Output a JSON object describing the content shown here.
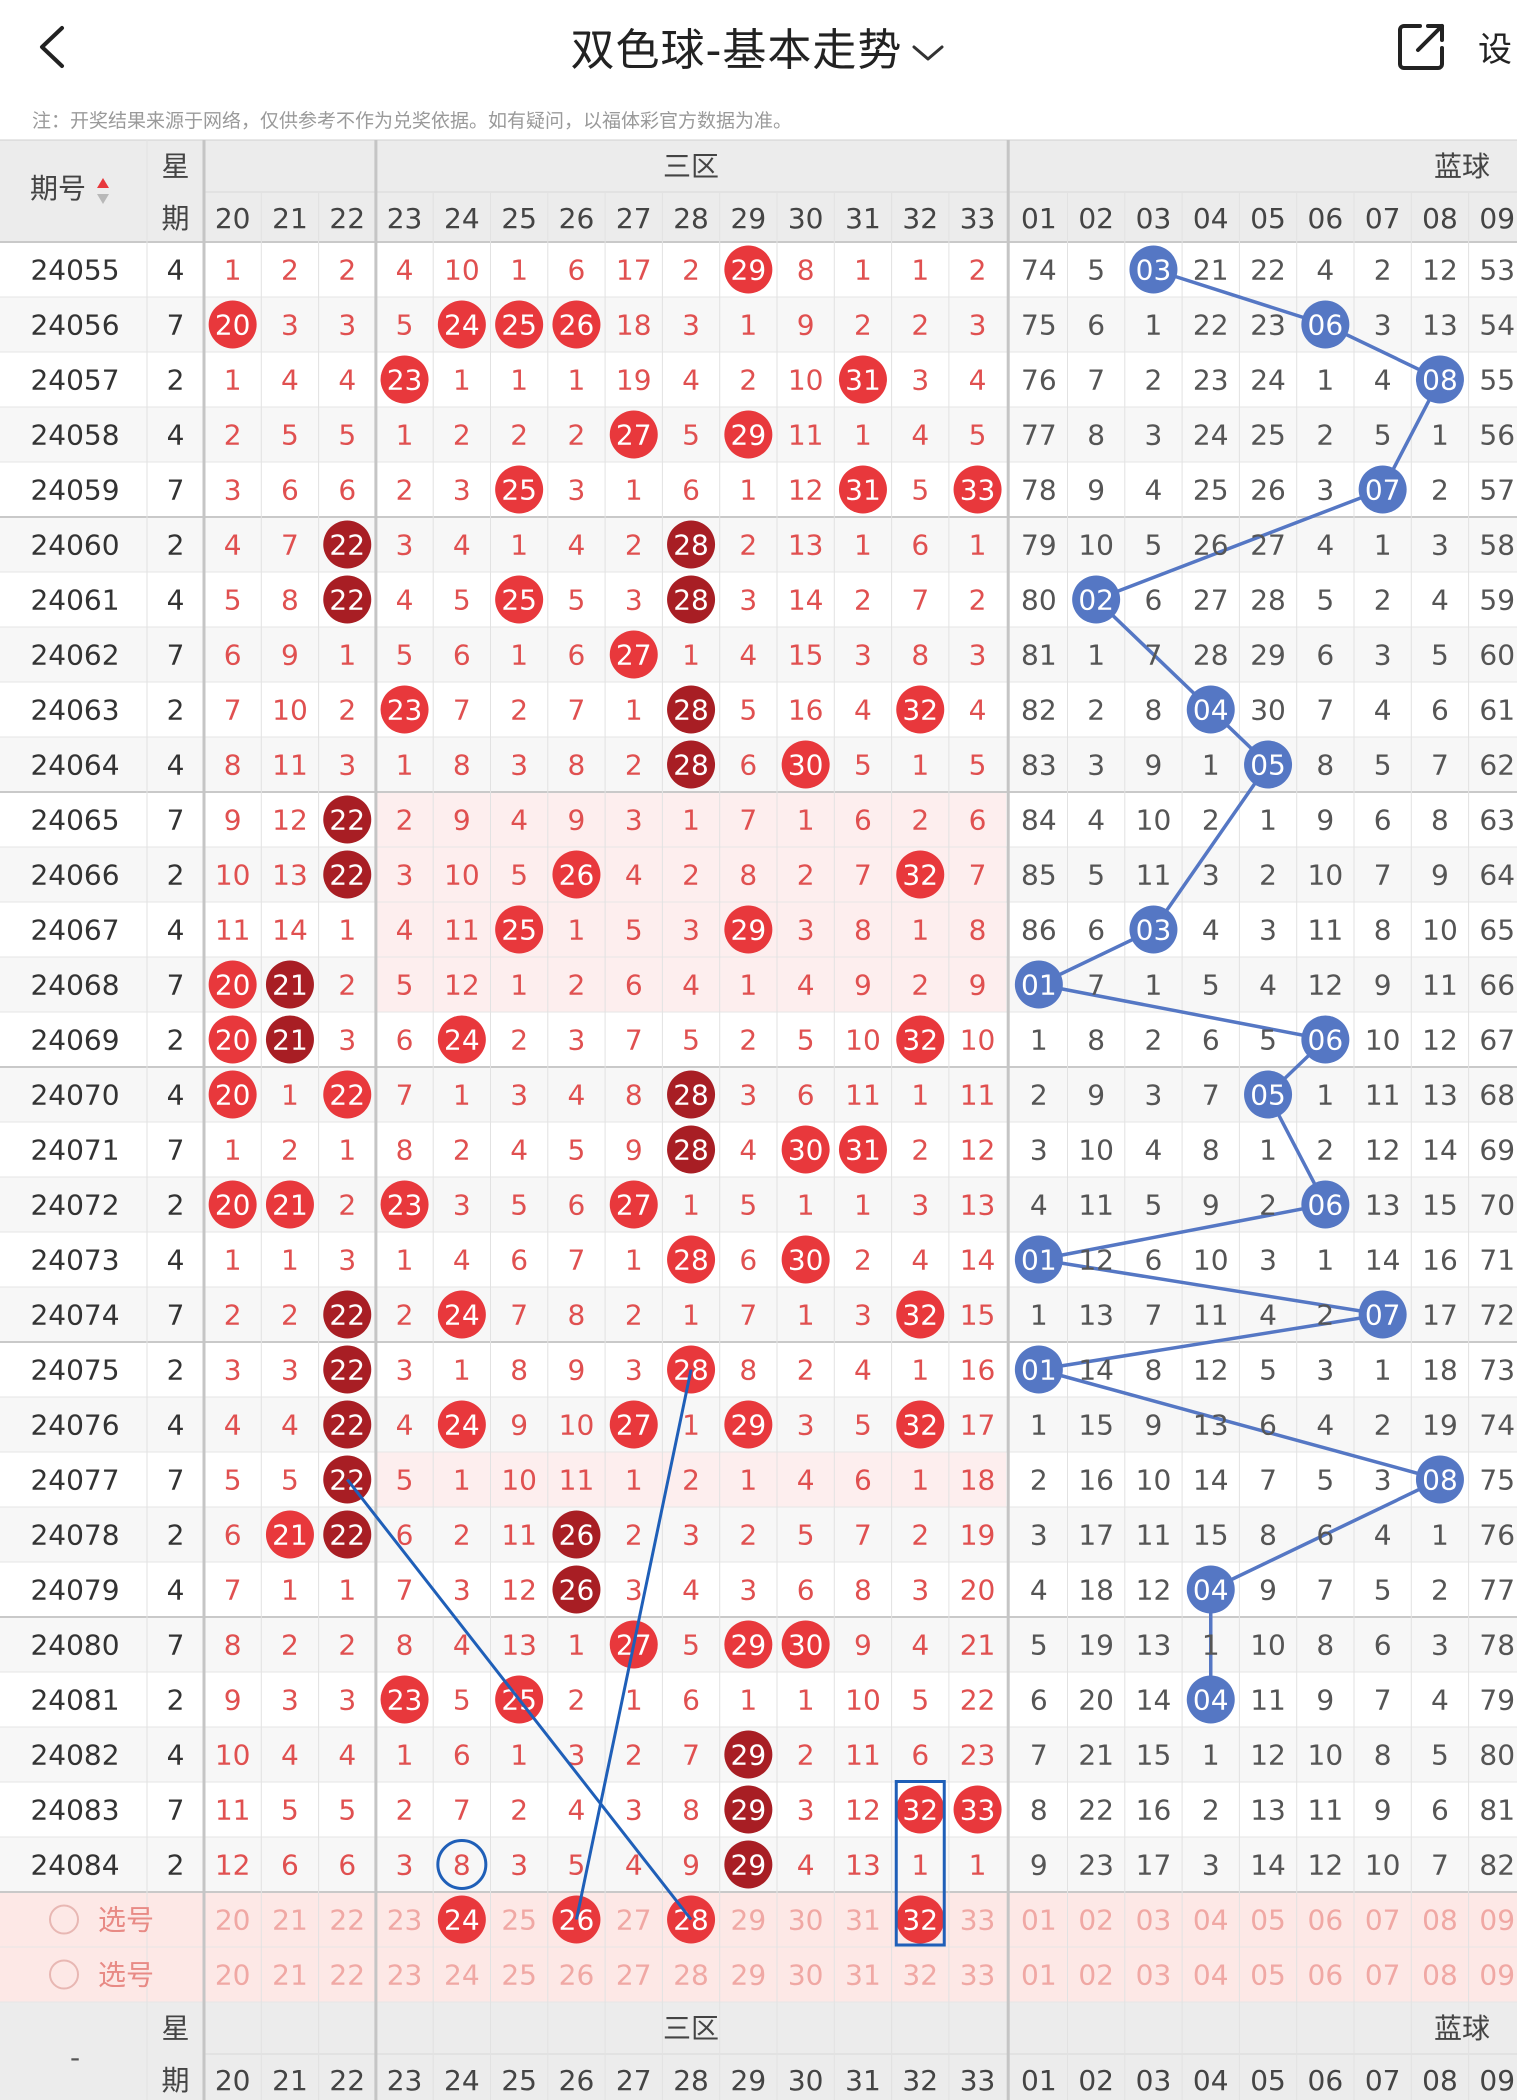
{
  "header": {
    "title": "双色球-基本走势",
    "settings_label": "设"
  },
  "note": "注：开奖结果来源于网络，仅供参考不作为兑奖依据。如有疑问，以福体彩官方数据为准。",
  "table": {
    "issue_header": "期号",
    "week_header": [
      "星",
      "期"
    ],
    "zone3_label": "三区",
    "blue_label": "蓝球",
    "red_cols": [
      "20",
      "21",
      "22",
      "23",
      "24",
      "25",
      "26",
      "27",
      "28",
      "29",
      "30",
      "31",
      "32",
      "33"
    ],
    "blue_cols": [
      "01",
      "02",
      "03",
      "04",
      "05",
      "06",
      "07",
      "08",
      "09"
    ],
    "rows": [
      {
        "issue": "24055",
        "week": "4",
        "red": [
          "1",
          "2",
          "2",
          "4",
          "10",
          "1",
          "6",
          "17",
          "2",
          "29",
          "8",
          "1",
          "1",
          "2"
        ],
        "blue": [
          "74",
          "5",
          "03",
          "21",
          "22",
          "4",
          "2",
          "12",
          "53"
        ]
      },
      {
        "issue": "24056",
        "week": "7",
        "red": [
          "20",
          "3",
          "3",
          "5",
          "24",
          "25",
          "26",
          "18",
          "3",
          "1",
          "9",
          "2",
          "2",
          "3"
        ],
        "blue": [
          "75",
          "6",
          "1",
          "22",
          "23",
          "06",
          "3",
          "13",
          "54"
        ]
      },
      {
        "issue": "24057",
        "week": "2",
        "red": [
          "1",
          "4",
          "4",
          "23",
          "1",
          "1",
          "1",
          "19",
          "4",
          "2",
          "10",
          "31",
          "3",
          "4"
        ],
        "blue": [
          "76",
          "7",
          "2",
          "23",
          "24",
          "1",
          "4",
          "08",
          "55"
        ]
      },
      {
        "issue": "24058",
        "week": "4",
        "red": [
          "2",
          "5",
          "5",
          "1",
          "2",
          "2",
          "2",
          "27",
          "5",
          "29",
          "11",
          "1",
          "4",
          "5"
        ],
        "blue": [
          "77",
          "8",
          "3",
          "24",
          "25",
          "2",
          "5",
          "1",
          "56"
        ]
      },
      {
        "issue": "24059",
        "week": "7",
        "red": [
          "3",
          "6",
          "6",
          "2",
          "3",
          "25",
          "3",
          "1",
          "6",
          "1",
          "12",
          "31",
          "5",
          "33"
        ],
        "blue": [
          "78",
          "9",
          "4",
          "25",
          "26",
          "3",
          "07",
          "2",
          "57"
        ]
      },
      {
        "issue": "24060",
        "week": "2",
        "red": [
          "4",
          "7",
          "22",
          "3",
          "4",
          "1",
          "4",
          "2",
          "28",
          "2",
          "13",
          "1",
          "6",
          "1"
        ],
        "blue": [
          "79",
          "10",
          "5",
          "26",
          "27",
          "4",
          "1",
          "3",
          "58"
        ]
      },
      {
        "issue": "24061",
        "week": "4",
        "red": [
          "5",
          "8",
          "22",
          "4",
          "5",
          "25",
          "5",
          "3",
          "28",
          "3",
          "14",
          "2",
          "7",
          "2"
        ],
        "blue": [
          "80",
          "02",
          "6",
          "27",
          "28",
          "5",
          "2",
          "4",
          "59"
        ]
      },
      {
        "issue": "24062",
        "week": "7",
        "red": [
          "6",
          "9",
          "1",
          "5",
          "6",
          "1",
          "6",
          "27",
          "1",
          "4",
          "15",
          "3",
          "8",
          "3"
        ],
        "blue": [
          "81",
          "1",
          "7",
          "28",
          "29",
          "6",
          "3",
          "5",
          "60"
        ]
      },
      {
        "issue": "24063",
        "week": "2",
        "red": [
          "7",
          "10",
          "2",
          "23",
          "7",
          "2",
          "7",
          "1",
          "28",
          "5",
          "16",
          "4",
          "32",
          "4"
        ],
        "blue": [
          "82",
          "2",
          "8",
          "04",
          "30",
          "7",
          "4",
          "6",
          "61"
        ]
      },
      {
        "issue": "24064",
        "week": "4",
        "red": [
          "8",
          "11",
          "3",
          "1",
          "8",
          "3",
          "8",
          "2",
          "28",
          "6",
          "30",
          "5",
          "1",
          "5"
        ],
        "blue": [
          "83",
          "3",
          "9",
          "1",
          "05",
          "8",
          "5",
          "7",
          "62"
        ]
      },
      {
        "issue": "24065",
        "week": "7",
        "red": [
          "9",
          "12",
          "22",
          "2",
          "9",
          "4",
          "9",
          "3",
          "1",
          "7",
          "1",
          "6",
          "2",
          "6"
        ],
        "blue": [
          "84",
          "4",
          "10",
          "2",
          "1",
          "9",
          "6",
          "8",
          "63"
        ]
      },
      {
        "issue": "24066",
        "week": "2",
        "red": [
          "10",
          "13",
          "22",
          "3",
          "10",
          "5",
          "26",
          "4",
          "2",
          "8",
          "2",
          "7",
          "32",
          "7"
        ],
        "blue": [
          "85",
          "5",
          "11",
          "3",
          "2",
          "10",
          "7",
          "9",
          "64"
        ]
      },
      {
        "issue": "24067",
        "week": "4",
        "red": [
          "11",
          "14",
          "1",
          "4",
          "11",
          "25",
          "1",
          "5",
          "3",
          "29",
          "3",
          "8",
          "1",
          "8"
        ],
        "blue": [
          "86",
          "6",
          "03",
          "4",
          "3",
          "11",
          "8",
          "10",
          "65"
        ]
      },
      {
        "issue": "24068",
        "week": "7",
        "red": [
          "20",
          "21",
          "2",
          "5",
          "12",
          "1",
          "2",
          "6",
          "4",
          "1",
          "4",
          "9",
          "2",
          "9"
        ],
        "blue": [
          "01",
          "7",
          "1",
          "5",
          "4",
          "12",
          "9",
          "11",
          "66"
        ]
      },
      {
        "issue": "24069",
        "week": "2",
        "red": [
          "20",
          "21",
          "3",
          "6",
          "24",
          "2",
          "3",
          "7",
          "5",
          "2",
          "5",
          "10",
          "32",
          "10"
        ],
        "blue": [
          "1",
          "8",
          "2",
          "6",
          "5",
          "06",
          "10",
          "12",
          "67"
        ]
      },
      {
        "issue": "24070",
        "week": "4",
        "red": [
          "20",
          "1",
          "22",
          "7",
          "1",
          "3",
          "4",
          "8",
          "28",
          "3",
          "6",
          "11",
          "1",
          "11"
        ],
        "blue": [
          "2",
          "9",
          "3",
          "7",
          "05",
          "1",
          "11",
          "13",
          "68"
        ]
      },
      {
        "issue": "24071",
        "week": "7",
        "red": [
          "1",
          "2",
          "1",
          "8",
          "2",
          "4",
          "5",
          "9",
          "28",
          "4",
          "30",
          "31",
          "2",
          "12"
        ],
        "blue": [
          "3",
          "10",
          "4",
          "8",
          "1",
          "2",
          "12",
          "14",
          "69"
        ]
      },
      {
        "issue": "24072",
        "week": "2",
        "red": [
          "20",
          "21",
          "2",
          "23",
          "3",
          "5",
          "6",
          "27",
          "1",
          "5",
          "1",
          "1",
          "3",
          "13"
        ],
        "blue": [
          "4",
          "11",
          "5",
          "9",
          "2",
          "06",
          "13",
          "15",
          "70"
        ]
      },
      {
        "issue": "24073",
        "week": "4",
        "red": [
          "1",
          "1",
          "3",
          "1",
          "4",
          "6",
          "7",
          "1",
          "28",
          "6",
          "30",
          "2",
          "4",
          "14"
        ],
        "blue": [
          "01",
          "12",
          "6",
          "10",
          "3",
          "1",
          "14",
          "16",
          "71"
        ]
      },
      {
        "issue": "24074",
        "week": "7",
        "red": [
          "2",
          "2",
          "22",
          "2",
          "24",
          "7",
          "8",
          "2",
          "1",
          "7",
          "1",
          "3",
          "32",
          "15"
        ],
        "blue": [
          "1",
          "13",
          "7",
          "11",
          "4",
          "2",
          "07",
          "17",
          "72"
        ]
      },
      {
        "issue": "24075",
        "week": "2",
        "red": [
          "3",
          "3",
          "22",
          "3",
          "1",
          "8",
          "9",
          "3",
          "28",
          "8",
          "2",
          "4",
          "1",
          "16"
        ],
        "blue": [
          "01",
          "14",
          "8",
          "12",
          "5",
          "3",
          "1",
          "18",
          "73"
        ]
      },
      {
        "issue": "24076",
        "week": "4",
        "red": [
          "4",
          "4",
          "22",
          "4",
          "24",
          "9",
          "10",
          "27",
          "1",
          "29",
          "3",
          "5",
          "32",
          "17"
        ],
        "blue": [
          "1",
          "15",
          "9",
          "13",
          "6",
          "4",
          "2",
          "19",
          "74"
        ]
      },
      {
        "issue": "24077",
        "week": "7",
        "red": [
          "5",
          "5",
          "22",
          "5",
          "1",
          "10",
          "11",
          "1",
          "2",
          "1",
          "4",
          "6",
          "1",
          "18"
        ],
        "blue": [
          "2",
          "16",
          "10",
          "14",
          "7",
          "5",
          "3",
          "08",
          "75"
        ]
      },
      {
        "issue": "24078",
        "week": "2",
        "red": [
          "6",
          "21",
          "22",
          "6",
          "2",
          "11",
          "26",
          "2",
          "3",
          "2",
          "5",
          "7",
          "2",
          "19"
        ],
        "blue": [
          "3",
          "17",
          "11",
          "15",
          "8",
          "6",
          "4",
          "1",
          "76"
        ]
      },
      {
        "issue": "24079",
        "week": "4",
        "red": [
          "7",
          "1",
          "1",
          "7",
          "3",
          "12",
          "26",
          "3",
          "4",
          "3",
          "6",
          "8",
          "3",
          "20"
        ],
        "blue": [
          "4",
          "18",
          "12",
          "04",
          "9",
          "7",
          "5",
          "2",
          "77"
        ]
      },
      {
        "issue": "24080",
        "week": "7",
        "red": [
          "8",
          "2",
          "2",
          "8",
          "4",
          "13",
          "1",
          "27",
          "5",
          "29",
          "30",
          "9",
          "4",
          "21"
        ],
        "blue": [
          "5",
          "19",
          "13",
          "1",
          "10",
          "8",
          "6",
          "3",
          "78"
        ]
      },
      {
        "issue": "24081",
        "week": "2",
        "red": [
          "9",
          "3",
          "3",
          "23",
          "5",
          "25",
          "2",
          "1",
          "6",
          "1",
          "1",
          "10",
          "5",
          "22"
        ],
        "blue": [
          "6",
          "20",
          "14",
          "04",
          "11",
          "9",
          "7",
          "4",
          "79"
        ]
      },
      {
        "issue": "24082",
        "week": "4",
        "red": [
          "10",
          "4",
          "4",
          "1",
          "6",
          "1",
          "3",
          "2",
          "7",
          "29",
          "2",
          "11",
          "6",
          "23"
        ],
        "blue": [
          "7",
          "21",
          "15",
          "1",
          "12",
          "10",
          "8",
          "5",
          "80"
        ]
      },
      {
        "issue": "24083",
        "week": "7",
        "red": [
          "11",
          "5",
          "5",
          "2",
          "7",
          "2",
          "4",
          "3",
          "8",
          "29",
          "3",
          "12",
          "32",
          "33"
        ],
        "blue": [
          "8",
          "22",
          "16",
          "2",
          "13",
          "11",
          "9",
          "6",
          "81"
        ]
      },
      {
        "issue": "24084",
        "week": "2",
        "red": [
          "12",
          "6",
          "6",
          "3",
          "8",
          "3",
          "5",
          "4",
          "9",
          "29",
          "4",
          "13",
          "1",
          "1"
        ],
        "blue": [
          "9",
          "23",
          "17",
          "3",
          "14",
          "12",
          "10",
          "7",
          "82"
        ]
      }
    ],
    "select_label": "选号",
    "footer_dash": "-"
  },
  "colors": {
    "red": "#e8383c",
    "dark_red": "#a81e24",
    "blue": "#5577c4",
    "annotation_blue": "#1f5fb8",
    "header_bg": "#ececec",
    "select_bg": "#fde8e6"
  }
}
